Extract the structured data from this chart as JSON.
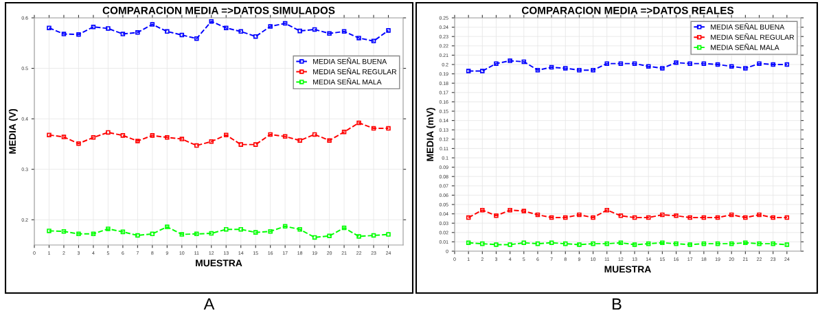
{
  "chart_data": [
    {
      "type": "line",
      "title": "COMPARACION MEDIA =>DATOS SIMULADOS",
      "xlabel": "MUESTRA",
      "ylabel": "MEDIA (V)",
      "x": [
        1,
        2,
        3,
        4,
        5,
        6,
        7,
        8,
        9,
        10,
        11,
        12,
        13,
        14,
        15,
        16,
        17,
        18,
        19,
        20,
        21,
        22,
        23,
        24
      ],
      "xlim": [
        0,
        25
      ],
      "xticks": [
        0,
        1,
        2,
        3,
        4,
        5,
        6,
        7,
        8,
        9,
        10,
        11,
        12,
        13,
        14,
        15,
        16,
        17,
        18,
        19,
        20,
        21,
        22,
        23,
        24
      ],
      "ylim": [
        0.15,
        0.6
      ],
      "yticks": [
        0.2,
        0.3,
        0.4,
        0.5,
        0.6
      ],
      "grid": true,
      "legend": "right",
      "marker": "square",
      "line_style": "dashed",
      "annotations": [
        "A"
      ],
      "series": [
        {
          "name": "MEDIA SEÑAL BUENA",
          "color": "#0000ff",
          "values": [
            0.58,
            0.568,
            0.567,
            0.582,
            0.579,
            0.568,
            0.571,
            0.587,
            0.573,
            0.566,
            0.559,
            0.593,
            0.58,
            0.573,
            0.563,
            0.583,
            0.589,
            0.574,
            0.577,
            0.569,
            0.573,
            0.56,
            0.554,
            0.575
          ]
        },
        {
          "name": "MEDIA SEÑAL REGULAR",
          "color": "#ff0000",
          "values": [
            0.368,
            0.364,
            0.351,
            0.363,
            0.373,
            0.367,
            0.356,
            0.367,
            0.363,
            0.36,
            0.347,
            0.355,
            0.368,
            0.349,
            0.349,
            0.369,
            0.365,
            0.357,
            0.369,
            0.357,
            0.374,
            0.392,
            0.381,
            0.381
          ]
        },
        {
          "name": "MEDIA SEÑAL MALA",
          "color": "#00ff00",
          "values": [
            0.178,
            0.177,
            0.172,
            0.172,
            0.182,
            0.176,
            0.169,
            0.172,
            0.186,
            0.171,
            0.172,
            0.173,
            0.181,
            0.181,
            0.175,
            0.177,
            0.187,
            0.181,
            0.165,
            0.168,
            0.184,
            0.167,
            0.169,
            0.171
          ]
        }
      ]
    },
    {
      "type": "line",
      "title": "COMPARACION MEDIA =>DATOS REALES",
      "xlabel": "MUESTRA",
      "ylabel": "MEDIA (mV)",
      "x": [
        1,
        2,
        3,
        4,
        5,
        6,
        7,
        8,
        9,
        10,
        11,
        12,
        13,
        14,
        15,
        16,
        17,
        18,
        19,
        20,
        21,
        22,
        23,
        24
      ],
      "xlim": [
        0,
        25
      ],
      "xticks": [
        0,
        1,
        2,
        3,
        4,
        5,
        6,
        7,
        8,
        9,
        10,
        11,
        12,
        13,
        14,
        15,
        16,
        17,
        18,
        19,
        20,
        21,
        22,
        23,
        24
      ],
      "ylim": [
        0,
        0.25
      ],
      "yticks": [
        0,
        0.01,
        0.02,
        0.03,
        0.04,
        0.05,
        0.06,
        0.07,
        0.08,
        0.09,
        0.1,
        0.11,
        0.12,
        0.13,
        0.14,
        0.15,
        0.16,
        0.17,
        0.18,
        0.19,
        0.2,
        0.21,
        0.22,
        0.23,
        0.24,
        0.25
      ],
      "grid": true,
      "legend": "top right",
      "marker": "square",
      "line_style": "dashed",
      "annotations": [
        "B"
      ],
      "series": [
        {
          "name": "MEDIA SEÑAL BUENA",
          "color": "#0000ff",
          "values": [
            0.193,
            0.193,
            0.201,
            0.204,
            0.203,
            0.194,
            0.197,
            0.196,
            0.194,
            0.194,
            0.201,
            0.201,
            0.201,
            0.198,
            0.196,
            0.202,
            0.201,
            0.201,
            0.2,
            0.198,
            0.196,
            0.201,
            0.2,
            0.2
          ]
        },
        {
          "name": "MEDIA SEÑAL REGULAR",
          "color": "#ff0000",
          "values": [
            0.036,
            0.044,
            0.038,
            0.044,
            0.043,
            0.039,
            0.036,
            0.036,
            0.039,
            0.036,
            0.044,
            0.038,
            0.036,
            0.036,
            0.039,
            0.038,
            0.036,
            0.036,
            0.036,
            0.039,
            0.036,
            0.039,
            0.036,
            0.036
          ]
        },
        {
          "name": "MEDIA SEÑAL MALA",
          "color": "#00ff00",
          "values": [
            0.009,
            0.008,
            0.007,
            0.007,
            0.009,
            0.008,
            0.009,
            0.008,
            0.007,
            0.008,
            0.008,
            0.009,
            0.007,
            0.008,
            0.009,
            0.008,
            0.007,
            0.008,
            0.008,
            0.008,
            0.009,
            0.008,
            0.008,
            0.007
          ]
        }
      ]
    }
  ]
}
